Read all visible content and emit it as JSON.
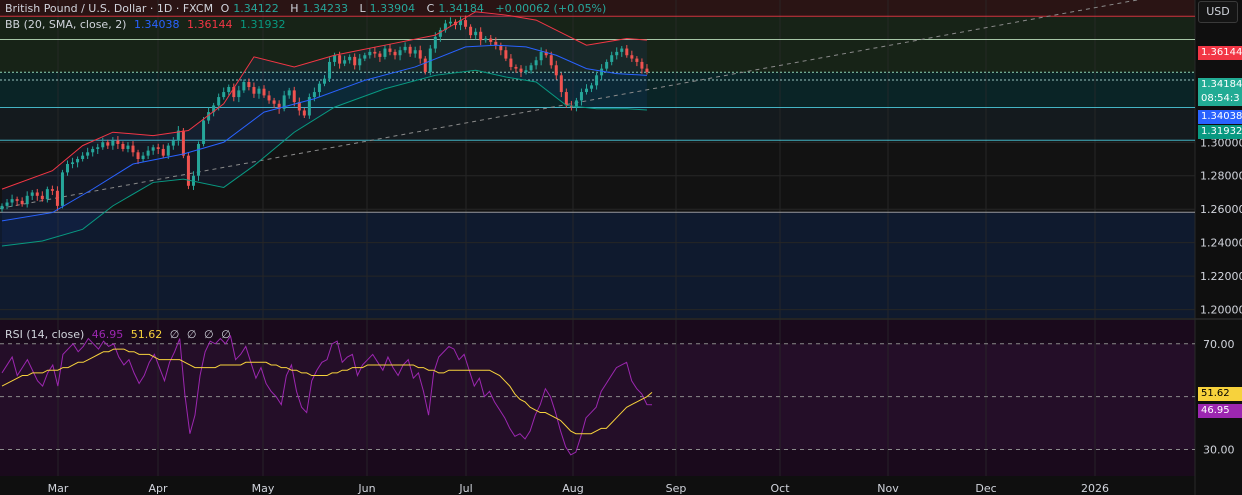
{
  "header": {
    "symbol": "British Pound / U.S. Dollar · 1D · FXCM",
    "o_label": "O",
    "o_value": "1.34122",
    "h_label": "H",
    "h_value": "1.34233",
    "l_label": "L",
    "l_value": "1.33904",
    "c_label": "C",
    "c_value": "1.34184",
    "change": "+0.00062 (+0.05%)"
  },
  "bb_legend": {
    "label": "BB (20, SMA, close, 2)",
    "basis": "1.34038",
    "upper": "1.36144",
    "lower": "1.31932"
  },
  "rsi_legend": {
    "label": "RSI (14, close)",
    "rsi": "46.95",
    "ma": "51.62",
    "extras": [
      "∅",
      "∅",
      "∅",
      "∅"
    ]
  },
  "currency_button": "USD",
  "badges": {
    "upper": "1.36144",
    "price": "1.34184",
    "countdown": "08:54:3",
    "basis": "1.34038",
    "lower": "1.31932",
    "rsi_ma": "51.62",
    "rsi": "46.95"
  },
  "colors": {
    "bg": "#0f0f0f",
    "up": "#26a69a",
    "down": "#ef5350",
    "bb_basis": "#2962ff",
    "bb_upper": "#f23645",
    "bb_lower": "#089981",
    "rsi_line": "#9c27b0",
    "rsi_ma": "#f7d23c",
    "zone_top": "#2a1414",
    "zone_green": "#172317",
    "zone_teal": "#0a2426",
    "zone_dark": "#141a1e",
    "zone_blue": "#0f1a2e",
    "rsi_bg": "#1a0a1c"
  },
  "chart_data": [
    {
      "type": "candlestick",
      "title": "British Pound / U.S. Dollar · 1D · FXCM",
      "x_ticks": [
        "Mar",
        "Apr",
        "May",
        "Jun",
        "Jul",
        "Aug",
        "Sep",
        "Oct",
        "Nov",
        "Dec",
        "2026"
      ],
      "y_ticks": [
        "1.30000",
        "1.28000",
        "1.26000",
        "1.24000",
        "1.22000",
        "1.20000"
      ],
      "ylim": [
        1.195,
        1.385
      ],
      "start": "2025-02-24",
      "closes": [
        1.262,
        1.264,
        1.266,
        1.265,
        1.263,
        1.268,
        1.27,
        1.268,
        1.266,
        1.272,
        1.271,
        1.262,
        1.282,
        1.287,
        1.288,
        1.29,
        1.292,
        1.294,
        1.296,
        1.297,
        1.3,
        1.298,
        1.301,
        1.299,
        1.296,
        1.298,
        1.294,
        1.29,
        1.292,
        1.295,
        1.297,
        1.296,
        1.292,
        1.298,
        1.301,
        1.307,
        1.292,
        1.274,
        1.28,
        1.299,
        1.313,
        1.318,
        1.322,
        1.327,
        1.33,
        1.333,
        1.327,
        1.331,
        1.336,
        1.333,
        1.329,
        1.332,
        1.328,
        1.325,
        1.323,
        1.32,
        1.328,
        1.331,
        1.324,
        1.319,
        1.316,
        1.327,
        1.33,
        1.335,
        1.338,
        1.348,
        1.352,
        1.347,
        1.349,
        1.351,
        1.346,
        1.35,
        1.352,
        1.354,
        1.353,
        1.351,
        1.356,
        1.354,
        1.352,
        1.355,
        1.357,
        1.353,
        1.355,
        1.35,
        1.342,
        1.356,
        1.363,
        1.367,
        1.371,
        1.372,
        1.37,
        1.373,
        1.369,
        1.364,
        1.366,
        1.361,
        1.362,
        1.36,
        1.358,
        1.355,
        1.35,
        1.345,
        1.344,
        1.342,
        1.343,
        1.346,
        1.349,
        1.354,
        1.352,
        1.346,
        1.34,
        1.33,
        1.322,
        1.321,
        1.325,
        1.33,
        1.332,
        1.334,
        1.34,
        1.344,
        1.348,
        1.352,
        1.354,
        1.356,
        1.352,
        1.35,
        1.348,
        1.344,
        1.342
      ],
      "bb_upper_pts": [
        [
          0,
          1.272
        ],
        [
          10,
          1.283
        ],
        [
          16,
          1.298
        ],
        [
          22,
          1.306
        ],
        [
          30,
          1.304
        ],
        [
          37,
          1.307
        ],
        [
          44,
          1.323
        ],
        [
          50,
          1.351
        ],
        [
          58,
          1.345
        ],
        [
          66,
          1.352
        ],
        [
          76,
          1.358
        ],
        [
          86,
          1.364
        ],
        [
          94,
          1.378
        ],
        [
          100,
          1.376
        ],
        [
          106,
          1.373
        ],
        [
          112,
          1.364
        ],
        [
          116,
          1.358
        ],
        [
          120,
          1.36
        ],
        [
          124,
          1.362
        ],
        [
          128,
          1.361
        ]
      ],
      "bb_basis_pts": [
        [
          0,
          1.253
        ],
        [
          10,
          1.258
        ],
        [
          18,
          1.272
        ],
        [
          26,
          1.287
        ],
        [
          36,
          1.293
        ],
        [
          44,
          1.3
        ],
        [
          52,
          1.318
        ],
        [
          62,
          1.326
        ],
        [
          72,
          1.337
        ],
        [
          82,
          1.345
        ],
        [
          92,
          1.357
        ],
        [
          98,
          1.358
        ],
        [
          104,
          1.357
        ],
        [
          110,
          1.352
        ],
        [
          116,
          1.344
        ],
        [
          122,
          1.341
        ],
        [
          128,
          1.34
        ]
      ],
      "bb_lower_pts": [
        [
          0,
          1.238
        ],
        [
          8,
          1.241
        ],
        [
          16,
          1.248
        ],
        [
          22,
          1.262
        ],
        [
          30,
          1.276
        ],
        [
          36,
          1.278
        ],
        [
          44,
          1.273
        ],
        [
          50,
          1.286
        ],
        [
          58,
          1.306
        ],
        [
          66,
          1.321
        ],
        [
          76,
          1.332
        ],
        [
          86,
          1.34
        ],
        [
          94,
          1.343
        ],
        [
          100,
          1.339
        ],
        [
          106,
          1.336
        ],
        [
          112,
          1.322
        ],
        [
          118,
          1.32
        ],
        [
          124,
          1.32
        ],
        [
          128,
          1.3193
        ]
      ],
      "trendline": [
        [
          0,
          1.2605
        ],
        [
          1242,
          1.3965
        ]
      ],
      "horizontal_levels": [
        1.3753,
        1.3614,
        1.3418,
        1.3372,
        1.3208,
        1.3012,
        1.2718,
        1.2582
      ]
    },
    {
      "type": "line",
      "title": "RSI (14, close)",
      "ylim": [
        20,
        79
      ],
      "y_ticks": [
        "70.00",
        "30.00"
      ],
      "bands": [
        70,
        50,
        30
      ],
      "series": [
        {
          "name": "RSI",
          "values": [
            59,
            62,
            65,
            58,
            61,
            64,
            60,
            56,
            54,
            59,
            62,
            54,
            66,
            68,
            70,
            67,
            69,
            72,
            70,
            68,
            71,
            69,
            70,
            65,
            62,
            64,
            59,
            55,
            58,
            63,
            66,
            61,
            56,
            63,
            67,
            72,
            51,
            36,
            43,
            58,
            67,
            71,
            70,
            72,
            70,
            73,
            64,
            66,
            69,
            63,
            57,
            61,
            55,
            52,
            50,
            47,
            58,
            62,
            52,
            46,
            44,
            56,
            60,
            63,
            64,
            70,
            71,
            63,
            65,
            66,
            58,
            62,
            64,
            66,
            63,
            60,
            65,
            61,
            58,
            62,
            64,
            57,
            59,
            52,
            43,
            59,
            65,
            67,
            69,
            68,
            64,
            66,
            60,
            54,
            57,
            50,
            52,
            48,
            45,
            42,
            38,
            35,
            36,
            34,
            37,
            43,
            47,
            53,
            50,
            44,
            37,
            31,
            28,
            29,
            35,
            42,
            44,
            46,
            52,
            55,
            58,
            61,
            62,
            63,
            56,
            53,
            51,
            47,
            46.95
          ]
        },
        {
          "name": "RSI MA",
          "values": [
            54,
            55,
            56,
            57,
            58,
            58,
            59,
            59,
            59,
            60,
            60,
            60,
            61,
            61,
            62,
            63,
            63,
            64,
            65,
            66,
            67,
            67,
            68,
            68,
            68,
            67,
            67,
            66,
            66,
            66,
            65,
            64,
            64,
            64,
            64,
            64,
            63,
            62,
            61,
            61,
            61,
            61,
            61,
            62,
            62,
            62,
            62,
            62,
            63,
            63,
            63,
            63,
            63,
            62,
            62,
            61,
            61,
            60,
            60,
            59,
            59,
            58,
            58,
            58,
            58,
            59,
            59,
            60,
            60,
            61,
            61,
            61,
            62,
            62,
            62,
            62,
            62,
            62,
            62,
            62,
            62,
            62,
            61,
            61,
            60,
            60,
            59,
            59,
            60,
            60,
            60,
            60,
            60,
            60,
            60,
            60,
            60,
            59,
            58,
            56,
            54,
            51,
            49,
            48,
            46,
            45,
            44,
            44,
            43,
            42,
            41,
            39,
            37,
            36,
            36,
            36,
            36,
            37,
            38,
            38,
            40,
            42,
            44,
            46,
            47,
            48,
            49,
            50,
            51.62
          ]
        }
      ]
    }
  ]
}
